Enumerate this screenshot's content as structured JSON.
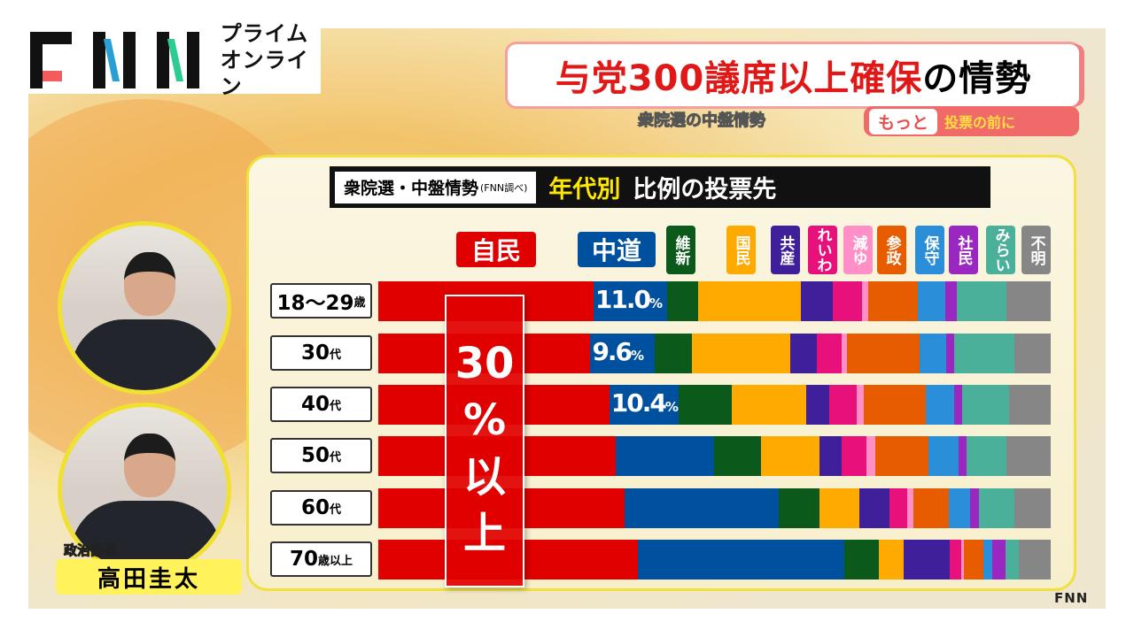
{
  "logo": {
    "brand": "FNN",
    "text_line1": "プライム",
    "text_line2": "オンライン"
  },
  "headline": {
    "red": "与党300議席以上確保",
    "black": "の情勢"
  },
  "subheadline": "衆院選の中盤情勢",
  "motto": {
    "part1": "もっと",
    "part2": "投票の前に"
  },
  "chart_title": {
    "box": "衆院選・中盤情勢",
    "source": "(FNN調べ)",
    "yellow": "年代別",
    "white": "比例の投票先"
  },
  "callout": {
    "line1": "30",
    "line2": "%",
    "line3": "以",
    "line4": "上"
  },
  "speaker": {
    "role": "政治部長",
    "name": "高田圭太"
  },
  "watermark": "FNN",
  "chart_data": {
    "type": "bar",
    "stacked": true,
    "orientation": "horizontal",
    "unit": "%",
    "categories": [
      {
        "num": "18〜29",
        "suffix": "歳"
      },
      {
        "num": "30",
        "suffix": "代"
      },
      {
        "num": "40",
        "suffix": "代"
      },
      {
        "num": "50",
        "suffix": "代"
      },
      {
        "num": "60",
        "suffix": "代"
      },
      {
        "num": "70",
        "suffix": "歳以上"
      }
    ],
    "series": [
      {
        "name": "自民",
        "color": "#e00000",
        "values": [
          32.0,
          31.8,
          34.8,
          35.6,
          36.9,
          38.9
        ]
      },
      {
        "name": "中道",
        "color": "#0050a0",
        "values": [
          11.0,
          9.6,
          10.4,
          14.8,
          23.2,
          31.0
        ],
        "labels": [
          "11.0",
          "9.6",
          "10.4",
          null,
          null,
          null
        ]
      },
      {
        "name": "維新",
        "color": "#0b5a1c",
        "values": [
          4.6,
          5.6,
          8.1,
          7.1,
          6.1,
          5.2
        ]
      },
      {
        "name": "国民",
        "color": "#ffaa00",
        "values": [
          15.3,
          14.8,
          11.2,
          8.8,
          6.0,
          3.7
        ]
      },
      {
        "name": "共産",
        "color": "#40209a",
        "values": [
          4.7,
          3.9,
          3.5,
          3.3,
          4.5,
          6.9
        ]
      },
      {
        "name": "れいわ",
        "color": "#e8107a",
        "values": [
          4.3,
          3.7,
          4.1,
          3.7,
          2.7,
          1.7
        ]
      },
      {
        "name": "減ゆ",
        "color": "#ff8fc6",
        "values": [
          0.9,
          0.9,
          1.1,
          1.3,
          0.9,
          0.4
        ]
      },
      {
        "name": "参政",
        "color": "#e85c00",
        "values": [
          7.4,
          10.9,
          9.3,
          8.1,
          5.3,
          2.9
        ]
      },
      {
        "name": "保守",
        "color": "#2a8ed8",
        "values": [
          4.1,
          4.0,
          4.3,
          4.5,
          3.2,
          1.3
        ]
      },
      {
        "name": "社民",
        "color": "#9a28c0",
        "values": [
          1.7,
          1.1,
          1.1,
          1.1,
          1.3,
          2.0
        ]
      },
      {
        "name": "みらい",
        "color": "#4ab09a",
        "values": [
          7.4,
          9.0,
          7.1,
          6.0,
          5.3,
          2.0
        ]
      },
      {
        "name": "不明",
        "color": "#868686",
        "values": [
          6.6,
          5.5,
          6.3,
          6.7,
          5.5,
          4.8
        ]
      }
    ],
    "annotation": "30%以上",
    "legend_placement": "top"
  }
}
